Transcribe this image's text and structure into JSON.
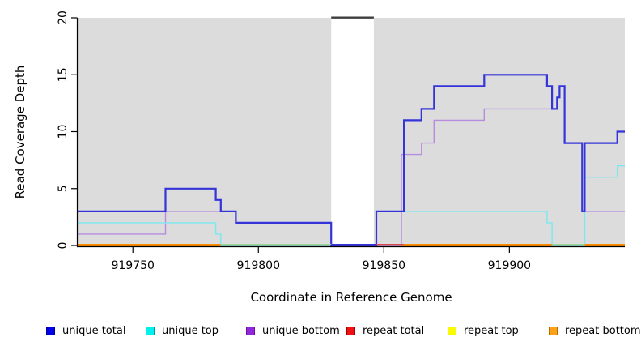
{
  "chart_data": {
    "type": "line",
    "subtype": "step-coverage",
    "title": "",
    "xlabel": "Coordinate in Reference Genome",
    "ylabel": "Read Coverage Depth",
    "xlim": [
      919728,
      919946
    ],
    "ylim": [
      0,
      20
    ],
    "x_ticks": [
      919750,
      919800,
      919850,
      919900
    ],
    "y_ticks": [
      0,
      5,
      10,
      15,
      20
    ],
    "grid": false,
    "plot_bg_color": "#DCDCDC",
    "repeat_region_band": {
      "x0": 919829,
      "x1": 919846,
      "color": "#FFFFFF",
      "top_marker_color": "#3D3D3D"
    },
    "series": [
      {
        "name": "repeat top",
        "color": "#F2F20A",
        "width": 1.4,
        "steps": [
          [
            919728,
            0
          ]
        ]
      },
      {
        "name": "repeat total",
        "color": "#DC4852",
        "width": 1.4,
        "steps": [
          [
            919728,
            0
          ]
        ]
      },
      {
        "name": "repeat bottom",
        "color": "#FF8C00",
        "width": 2,
        "steps": [
          [
            919728,
            0
          ]
        ]
      },
      {
        "name": "unique bottom",
        "color": "#B78BE0",
        "width": 1.4,
        "steps": [
          [
            919728,
            1
          ],
          [
            919763,
            3
          ],
          [
            919791,
            2
          ],
          [
            919829,
            0
          ],
          [
            919857,
            8
          ],
          [
            919865,
            9
          ],
          [
            919870,
            11
          ],
          [
            919890,
            12
          ],
          [
            919919,
            13
          ],
          [
            919920,
            14
          ],
          [
            919922,
            9
          ],
          [
            919929,
            3
          ]
        ]
      },
      {
        "name": "unique top",
        "color": "#79E8F0",
        "width": 1.4,
        "steps": [
          [
            919728,
            2
          ],
          [
            919783,
            1
          ],
          [
            919785,
            0
          ],
          [
            919847,
            3
          ],
          [
            919915,
            2
          ],
          [
            919917,
            0
          ],
          [
            919930,
            6
          ],
          [
            919943,
            7
          ]
        ]
      },
      {
        "name": "unique total",
        "color": "#3434D9",
        "width": 2.2,
        "steps": [
          [
            919728,
            3
          ],
          [
            919763,
            5
          ],
          [
            919783,
            4
          ],
          [
            919785,
            3
          ],
          [
            919791,
            2
          ],
          [
            919829,
            0
          ],
          [
            919847,
            3
          ],
          [
            919858,
            11
          ],
          [
            919865,
            12
          ],
          [
            919870,
            14
          ],
          [
            919890,
            15
          ],
          [
            919915,
            14
          ],
          [
            919917,
            12
          ],
          [
            919919,
            13
          ],
          [
            919920,
            14
          ],
          [
            919922,
            9
          ],
          [
            919929,
            3
          ],
          [
            919930,
            9
          ],
          [
            919943,
            10
          ]
        ]
      }
    ],
    "baseline_segments": [
      {
        "x0": 919728,
        "x1": 919785,
        "color": "#FF8C00"
      },
      {
        "x0": 919785,
        "x1": 919829,
        "color": "#99D699"
      },
      {
        "x0": 919829,
        "x1": 919847,
        "color": "#3434D9"
      },
      {
        "x0": 919847,
        "x1": 919858,
        "color": "#DC4852"
      },
      {
        "x0": 919858,
        "x1": 919917,
        "color": "#FF8C00"
      },
      {
        "x0": 919917,
        "x1": 919930,
        "color": "#99D699"
      },
      {
        "x0": 919930,
        "x1": 919946,
        "color": "#FF8C00"
      }
    ]
  },
  "legend": {
    "items": [
      {
        "label": "unique total",
        "fill": "#0000E6",
        "border": "#0000A0"
      },
      {
        "label": "unique top",
        "fill": "#00F0F0",
        "border": "#009C9C"
      },
      {
        "label": "unique bottom",
        "fill": "#9127D8",
        "border": "#66109E"
      },
      {
        "label": "repeat total",
        "fill": "#EE1111",
        "border": "#A00000"
      },
      {
        "label": "repeat top",
        "fill": "#FAFA00",
        "border": "#9C9C00"
      },
      {
        "label": "repeat bottom",
        "fill": "#FFA019",
        "border": "#B36D00"
      }
    ]
  }
}
